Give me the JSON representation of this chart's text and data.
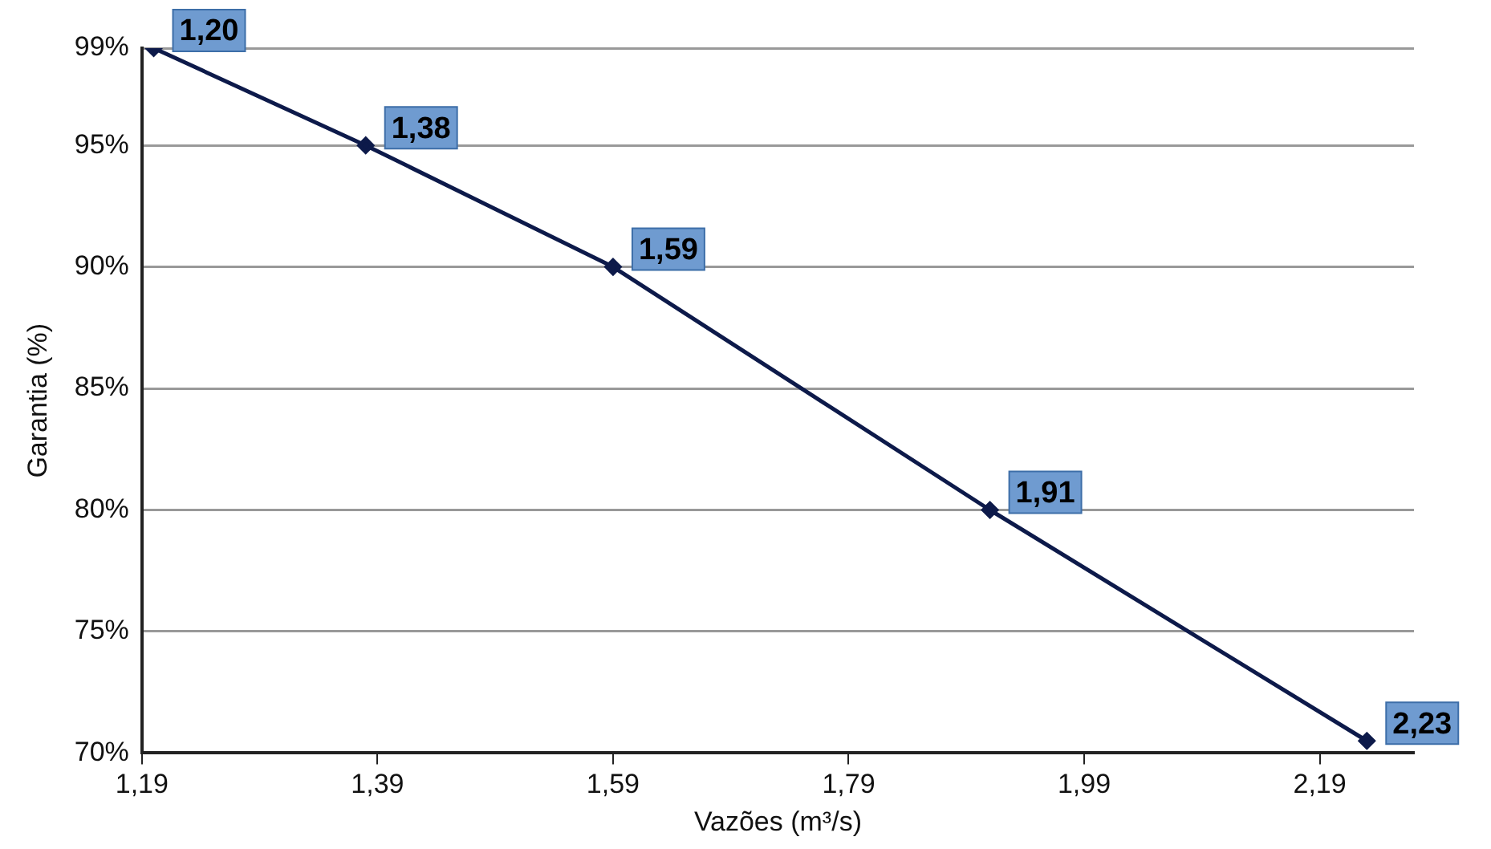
{
  "chart_data": {
    "type": "line",
    "xlabel": "Vazões (m³/s)",
    "ylabel": "Garantia (%)",
    "x": [
      1.2,
      1.38,
      1.59,
      1.91,
      2.23
    ],
    "series": [
      {
        "color": "#0d1a4a",
        "values": [
          99,
          95,
          90,
          80,
          70.5
        ]
      }
    ],
    "annotations": [
      {
        "text": "1,20",
        "x": 1.2,
        "y": 99
      },
      {
        "text": "1,38",
        "x": 1.38,
        "y": 95
      },
      {
        "text": "1,59",
        "x": 1.59,
        "y": 90
      },
      {
        "text": "1,91",
        "x": 1.91,
        "y": 80
      },
      {
        "text": "2,23",
        "x": 2.23,
        "y": 70.5
      }
    ],
    "xlim": [
      1.19,
      2.27
    ],
    "xticks": [
      {
        "value": 1.19,
        "label": "1,19"
      },
      {
        "value": 1.39,
        "label": "1,39"
      },
      {
        "value": 1.59,
        "label": "1,59"
      },
      {
        "value": 1.79,
        "label": "1,79"
      },
      {
        "value": 1.99,
        "label": "1,99"
      },
      {
        "value": 2.19,
        "label": "2,19"
      }
    ],
    "ylim": [
      70,
      99
    ],
    "yticks": [
      {
        "value": 70,
        "label": "70%"
      },
      {
        "value": 75,
        "label": "75%"
      },
      {
        "value": 80,
        "label": "80%"
      },
      {
        "value": 85,
        "label": "85%"
      },
      {
        "value": 90,
        "label": "90%"
      },
      {
        "value": 95,
        "label": "95%"
      },
      {
        "value": 99,
        "label": "99%"
      }
    ],
    "grid": "y",
    "legend": false,
    "marker": "diamond",
    "line_style": "solid"
  }
}
